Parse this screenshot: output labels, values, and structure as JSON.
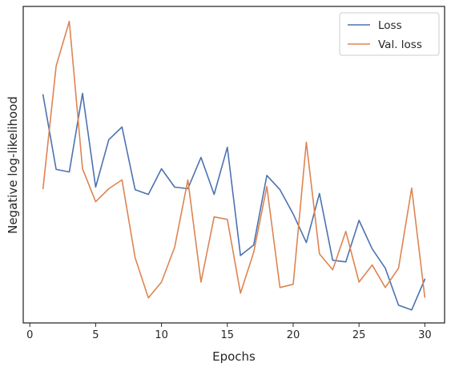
{
  "chart_data": {
    "type": "line",
    "xlabel": "Epochs",
    "ylabel": "Negative log-likelihood",
    "xlim": [
      -0.5,
      31.5
    ],
    "ylim": [
      0,
      100
    ],
    "xticks": [
      0,
      5,
      10,
      15,
      20,
      25,
      30
    ],
    "yticks_shown": false,
    "grid": false,
    "legend_position": "top-right",
    "x": [
      1,
      2,
      3,
      4,
      5,
      6,
      7,
      8,
      9,
      10,
      11,
      12,
      13,
      14,
      15,
      16,
      17,
      18,
      19,
      20,
      21,
      22,
      23,
      24,
      25,
      26,
      27,
      28,
      29,
      30
    ],
    "series": [
      {
        "name": "Loss",
        "color": "#4c72b0",
        "values": [
          72.1,
          48.5,
          47.7,
          72.5,
          42.9,
          57.9,
          61.9,
          42.1,
          40.6,
          48.7,
          42.9,
          42.4,
          52.3,
          40.6,
          55.5,
          21.3,
          24.6,
          46.6,
          42.1,
          34.4,
          25.4,
          40.9,
          19.8,
          19.3,
          32.4,
          23.4,
          17.3,
          5.6,
          4.1,
          13.8
        ]
      },
      {
        "name": "Val. loss",
        "color": "#dd8452",
        "values": [
          42.4,
          81.2,
          95.3,
          48.7,
          38.3,
          42.4,
          45.2,
          20.6,
          7.9,
          12.9,
          23.9,
          45.2,
          12.9,
          33.5,
          32.7,
          9.4,
          22.3,
          43.1,
          11.2,
          12.2,
          57.1,
          21.8,
          16.8,
          28.9,
          12.9,
          18.3,
          11.2,
          17.3,
          42.6,
          8.1
        ]
      }
    ]
  }
}
